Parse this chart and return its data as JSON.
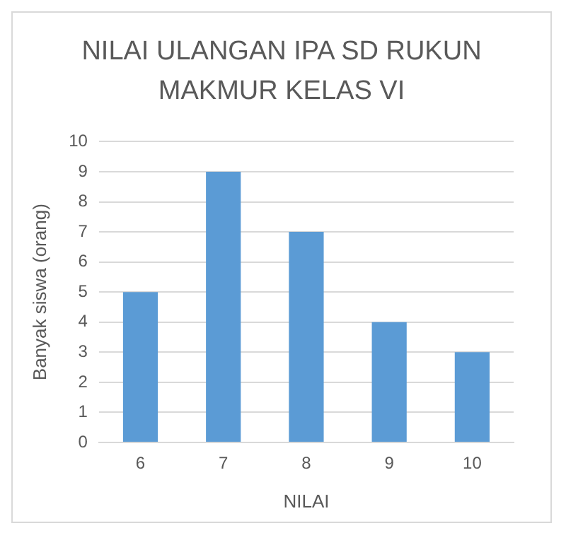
{
  "chart_data": {
    "type": "bar",
    "title": "NILAI ULANGAN IPA SD RUKUN MAKMUR KELAS VI",
    "xlabel": "NILAI",
    "ylabel": "Banyak siswa (orang)",
    "categories": [
      "6",
      "7",
      "8",
      "9",
      "10"
    ],
    "values": [
      5,
      9,
      7,
      4,
      3
    ],
    "color": "#5b9bd5",
    "ylim": [
      0,
      10
    ],
    "yticks": [
      0,
      1,
      2,
      3,
      4,
      5,
      6,
      7,
      8,
      9,
      10
    ],
    "grid": "y",
    "legend": false
  }
}
